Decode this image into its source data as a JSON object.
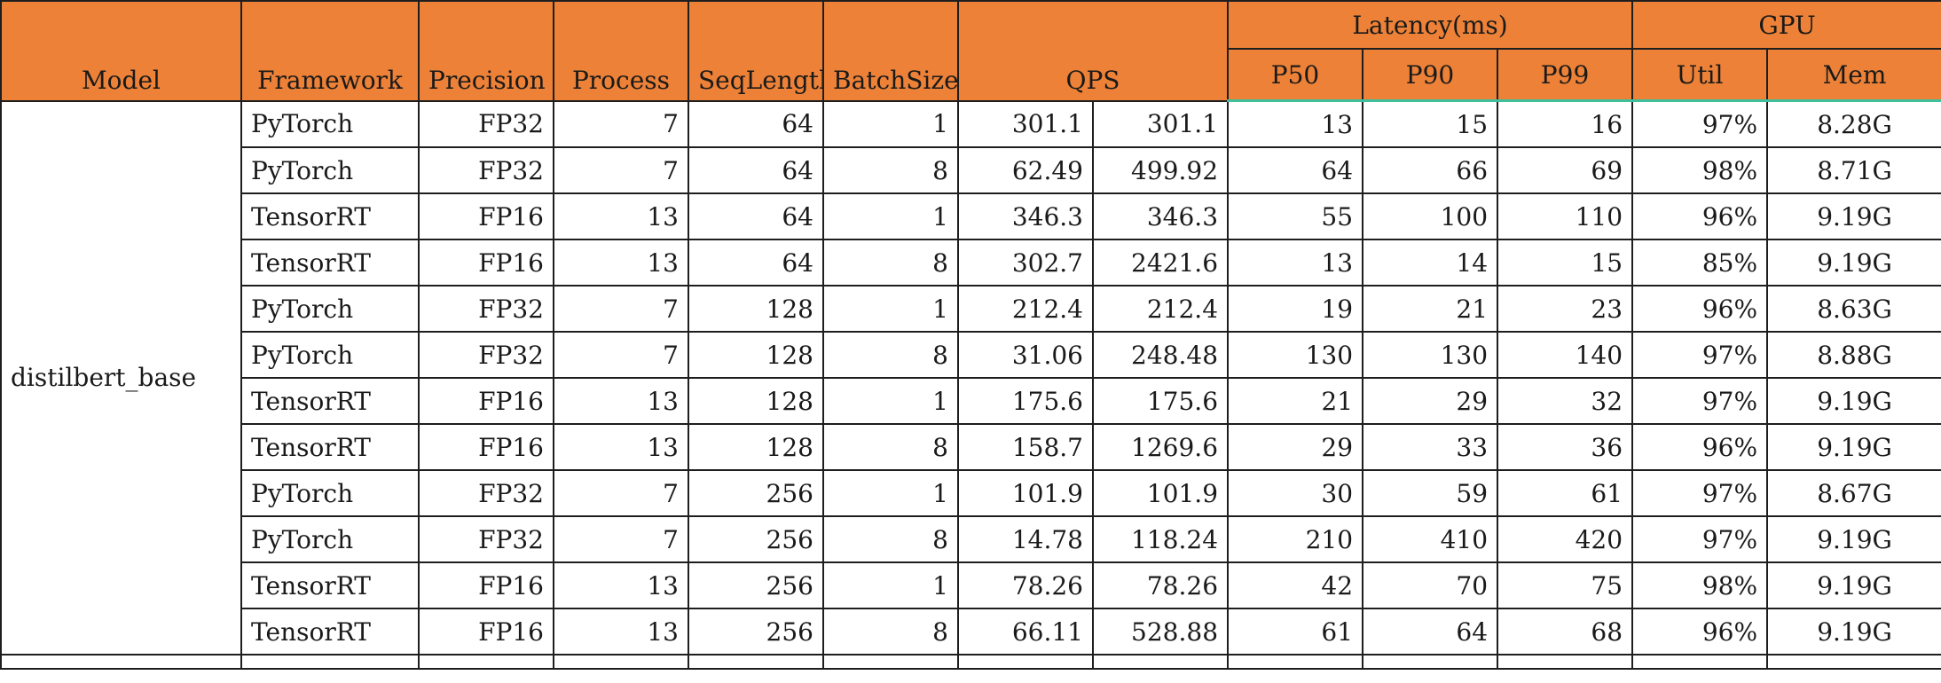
{
  "headers": {
    "model": "Model",
    "framework": "Framework",
    "precision": "Precision",
    "process": "Process",
    "seqlength": "SeqLength",
    "batchsize": "BatchSize",
    "qps": "QPS",
    "latency": "Latency(ms)",
    "p50": "P50",
    "p90": "P90",
    "p99": "P99",
    "gpu": "GPU",
    "util": "Util",
    "mem": "Mem"
  },
  "model_name": "distilbert_base",
  "rows": [
    {
      "framework": "PyTorch",
      "precision": "FP32",
      "process": "7",
      "seqlength": "64",
      "batchsize": "1",
      "qps1": "301.1",
      "qps2": "301.1",
      "p50": "13",
      "p90": "15",
      "p99": "16",
      "util": "97%",
      "mem": "8.28G"
    },
    {
      "framework": "PyTorch",
      "precision": "FP32",
      "process": "7",
      "seqlength": "64",
      "batchsize": "8",
      "qps1": "62.49",
      "qps2": "499.92",
      "p50": "64",
      "p90": "66",
      "p99": "69",
      "util": "98%",
      "mem": "8.71G"
    },
    {
      "framework": "TensorRT",
      "precision": "FP16",
      "process": "13",
      "seqlength": "64",
      "batchsize": "1",
      "qps1": "346.3",
      "qps2": "346.3",
      "p50": "55",
      "p90": "100",
      "p99": "110",
      "util": "96%",
      "mem": "9.19G"
    },
    {
      "framework": "TensorRT",
      "precision": "FP16",
      "process": "13",
      "seqlength": "64",
      "batchsize": "8",
      "qps1": "302.7",
      "qps2": "2421.6",
      "p50": "13",
      "p90": "14",
      "p99": "15",
      "util": "85%",
      "mem": "9.19G"
    },
    {
      "framework": "PyTorch",
      "precision": "FP32",
      "process": "7",
      "seqlength": "128",
      "batchsize": "1",
      "qps1": "212.4",
      "qps2": "212.4",
      "p50": "19",
      "p90": "21",
      "p99": "23",
      "util": "96%",
      "mem": "8.63G"
    },
    {
      "framework": "PyTorch",
      "precision": "FP32",
      "process": "7",
      "seqlength": "128",
      "batchsize": "8",
      "qps1": "31.06",
      "qps2": "248.48",
      "p50": "130",
      "p90": "130",
      "p99": "140",
      "util": "97%",
      "mem": "8.88G"
    },
    {
      "framework": "TensorRT",
      "precision": "FP16",
      "process": "13",
      "seqlength": "128",
      "batchsize": "1",
      "qps1": "175.6",
      "qps2": "175.6",
      "p50": "21",
      "p90": "29",
      "p99": "32",
      "util": "97%",
      "mem": "9.19G"
    },
    {
      "framework": "TensorRT",
      "precision": "FP16",
      "process": "13",
      "seqlength": "128",
      "batchsize": "8",
      "qps1": "158.7",
      "qps2": "1269.6",
      "p50": "29",
      "p90": "33",
      "p99": "36",
      "util": "96%",
      "mem": "9.19G"
    },
    {
      "framework": "PyTorch",
      "precision": "FP32",
      "process": "7",
      "seqlength": "256",
      "batchsize": "1",
      "qps1": "101.9",
      "qps2": "101.9",
      "p50": "30",
      "p90": "59",
      "p99": "61",
      "util": "97%",
      "mem": "8.67G"
    },
    {
      "framework": "PyTorch",
      "precision": "FP32",
      "process": "7",
      "seqlength": "256",
      "batchsize": "8",
      "qps1": "14.78",
      "qps2": "118.24",
      "p50": "210",
      "p90": "410",
      "p99": "420",
      "util": "97%",
      "mem": "9.19G"
    },
    {
      "framework": "TensorRT",
      "precision": "FP16",
      "process": "13",
      "seqlength": "256",
      "batchsize": "1",
      "qps1": "78.26",
      "qps2": "78.26",
      "p50": "42",
      "p90": "70",
      "p99": "75",
      "util": "98%",
      "mem": "9.19G"
    },
    {
      "framework": "TensorRT",
      "precision": "FP16",
      "process": "13",
      "seqlength": "256",
      "batchsize": "8",
      "qps1": "66.11",
      "qps2": "528.88",
      "p50": "61",
      "p90": "64",
      "p99": "68",
      "util": "96%",
      "mem": "9.19G"
    }
  ]
}
